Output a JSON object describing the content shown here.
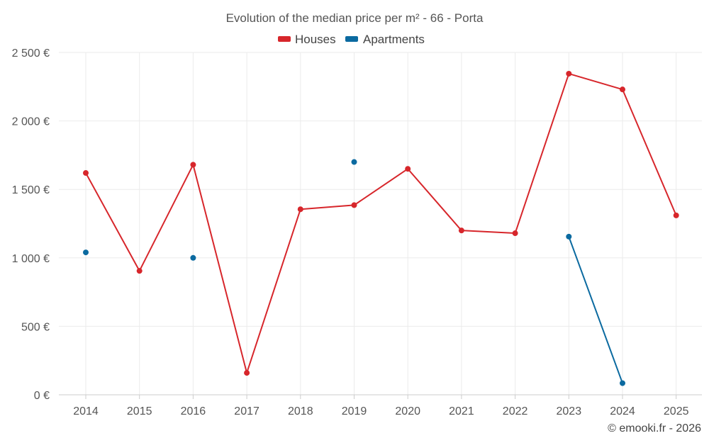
{
  "chart_data": {
    "type": "line",
    "title": "Evolution of the median price per m² - 66 - Porta",
    "categories": [
      "2014",
      "2015",
      "2016",
      "2017",
      "2018",
      "2019",
      "2020",
      "2021",
      "2022",
      "2023",
      "2024",
      "2025"
    ],
    "ylim": [
      0,
      2500
    ],
    "yticks": [
      0,
      500,
      1000,
      1500,
      2000,
      2500
    ],
    "ytick_labels": [
      "0 €",
      "500 €",
      "1 000 €",
      "1 500 €",
      "2 000 €",
      "2 500 €"
    ],
    "grid": true,
    "legend_position": "top-center",
    "series": [
      {
        "name": "Houses",
        "color": "#d7262b",
        "values": [
          1620,
          905,
          1680,
          160,
          1355,
          1385,
          1650,
          1200,
          1180,
          2345,
          2230,
          1310
        ]
      },
      {
        "name": "Apartments",
        "color": "#0b6aa0",
        "values": [
          1040,
          null,
          1000,
          null,
          null,
          1700,
          null,
          null,
          null,
          1155,
          85,
          null
        ]
      }
    ]
  },
  "credit": "© emooki.fr - 2026"
}
